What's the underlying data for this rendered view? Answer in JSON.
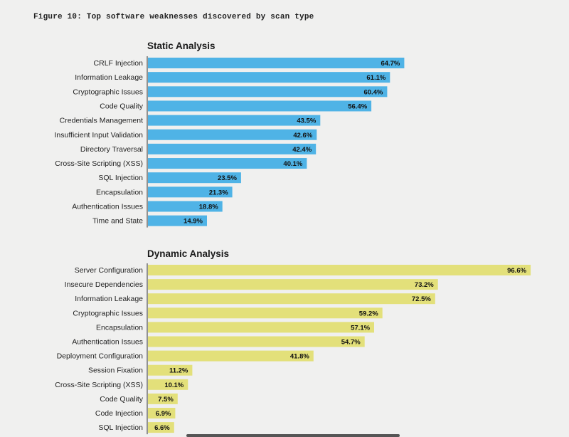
{
  "figure": {
    "caption": "Figure 10: Top software weaknesses discovered by scan type"
  },
  "chart_data": [
    {
      "type": "bar",
      "orientation": "horizontal",
      "title": "Static Analysis",
      "color": "#4fb3e6",
      "xlim": [
        0,
        100
      ],
      "categories": [
        "CRLF Injection",
        "Information Leakage",
        "Cryptographic Issues",
        "Code Quality",
        "Credentials Management",
        "Insufficient Input Validation",
        "Directory Traversal",
        "Cross-Site Scripting (XSS)",
        "SQL Injection",
        "Encapsulation",
        "Authentication Issues",
        "Time and State"
      ],
      "values": [
        64.7,
        61.1,
        60.4,
        56.4,
        43.5,
        42.6,
        42.4,
        40.1,
        23.5,
        21.3,
        18.8,
        14.9
      ],
      "labels": [
        "64.7%",
        "61.1%",
        "60.4%",
        "56.4%",
        "43.5%",
        "42.6%",
        "42.4%",
        "40.1%",
        "23.5%",
        "21.3%",
        "18.8%",
        "14.9%"
      ]
    },
    {
      "type": "bar",
      "orientation": "horizontal",
      "title": "Dynamic Analysis",
      "color": "#e3e07a",
      "xlim": [
        0,
        100
      ],
      "categories": [
        "Server Configuration",
        "Insecure Dependencies",
        "Information Leakage",
        "Cryptographic Issues",
        "Encapsulation",
        "Authentication Issues",
        "Deployment Configuration",
        "Session Fixation",
        "Cross-Site Scripting (XSS)",
        "Code Quality",
        "Code Injection",
        "SQL Injection"
      ],
      "values": [
        96.6,
        73.2,
        72.5,
        59.2,
        57.1,
        54.7,
        41.8,
        11.2,
        10.1,
        7.5,
        6.9,
        6.6
      ],
      "labels": [
        "96.6%",
        "73.2%",
        "72.5%",
        "59.2%",
        "57.1%",
        "54.7%",
        "41.8%",
        "11.2%",
        "10.1%",
        "7.5%",
        "6.9%",
        "6.6%"
      ]
    }
  ]
}
